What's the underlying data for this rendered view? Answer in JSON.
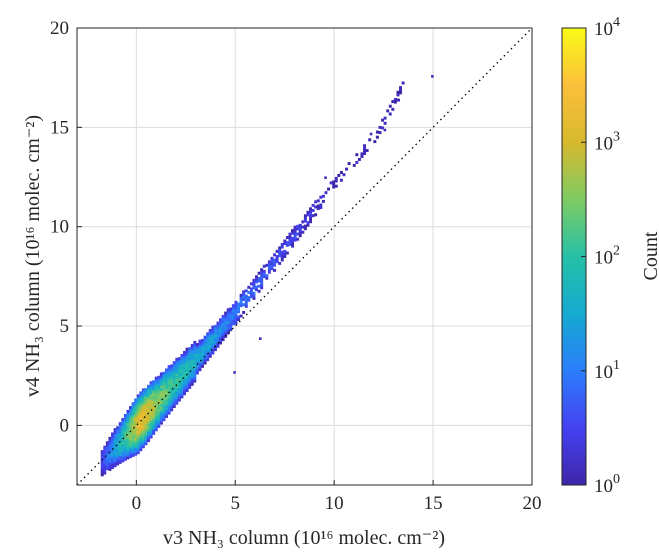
{
  "chart_data": {
    "type": "heatmap",
    "subtype": "2d-density-histogram",
    "title": "",
    "xlabel": "v3 NH₃ column (10¹⁶ molec. cm⁻²)",
    "ylabel": "v4 NH₃ column (10¹⁶ molec. cm⁻²)",
    "xlim": [
      -3,
      20
    ],
    "ylim": [
      -3,
      20
    ],
    "xticks": [
      0,
      5,
      10,
      15,
      20
    ],
    "yticks": [
      0,
      5,
      10,
      15,
      20
    ],
    "xtick_labels": [
      "0",
      "5",
      "10",
      "15",
      "20"
    ],
    "ytick_labels": [
      "0",
      "5",
      "10",
      "15",
      "20"
    ],
    "grid": true,
    "reference_line": {
      "style": "dotted",
      "slope": 1,
      "intercept": 0,
      "color": "#000000"
    },
    "density": {
      "bin_size": 0.13,
      "description_points": [
        {
          "x": -1.8,
          "y_center": -1.9,
          "count": 3
        },
        {
          "x": -1.0,
          "y_center": -1.0,
          "count": 40
        },
        {
          "x": -0.5,
          "y_center": -0.5,
          "count": 200
        },
        {
          "x": 0.0,
          "y_center": 0.0,
          "count": 1500
        },
        {
          "x": 0.5,
          "y_center": 0.55,
          "count": 1200
        },
        {
          "x": 1.0,
          "y_center": 1.1,
          "count": 400
        },
        {
          "x": 2.0,
          "y_center": 2.2,
          "count": 100
        },
        {
          "x": 3.0,
          "y_center": 3.3,
          "count": 40
        },
        {
          "x": 4.0,
          "y_center": 4.5,
          "count": 20
        },
        {
          "x": 5.0,
          "y_center": 5.7,
          "count": 10
        },
        {
          "x": 6.0,
          "y_center": 7.0,
          "count": 6
        },
        {
          "x": 7.0,
          "y_center": 8.3,
          "count": 4
        },
        {
          "x": 8.0,
          "y_center": 9.6,
          "count": 3
        },
        {
          "x": 9.0,
          "y_center": 10.9,
          "count": 2
        },
        {
          "x": 10.0,
          "y_center": 12.2,
          "count": 1
        },
        {
          "x": 12.0,
          "y_center": 14.5,
          "count": 1
        },
        {
          "x": 13.5,
          "y_center": 17.2,
          "count": 1
        }
      ]
    },
    "colorbar": {
      "label": "Count",
      "scale": "log",
      "range": [
        1,
        10000
      ],
      "ticks": [
        {
          "value": 1,
          "base": "10",
          "exp": "0"
        },
        {
          "value": 10,
          "base": "10",
          "exp": "1"
        },
        {
          "value": 100,
          "base": "10",
          "exp": "2"
        },
        {
          "value": 1000,
          "base": "10",
          "exp": "3"
        },
        {
          "value": 10000,
          "base": "10",
          "exp": "4"
        }
      ],
      "colormap": "parula",
      "colormap_stops": [
        "#3e26a8",
        "#4541f2",
        "#2a7efb",
        "#15aad0",
        "#25c0a6",
        "#7fcb63",
        "#d7b92d",
        "#fbbf3b",
        "#f9fb15"
      ]
    }
  }
}
